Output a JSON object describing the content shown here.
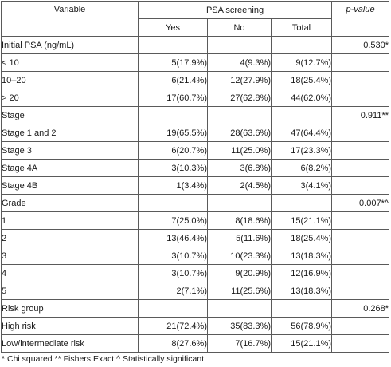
{
  "header": {
    "variable": "Variable",
    "psa_screening": "PSA screening",
    "yes": "Yes",
    "no": "No",
    "total": "Total",
    "p_value": "p-value"
  },
  "rows": [
    {
      "label": "Initial PSA (ng/mL)",
      "kind": "group",
      "yes": "",
      "no": "",
      "total": "",
      "p": "0.530*"
    },
    {
      "label": "< 10",
      "kind": "sub",
      "yes": "5(17.9%)",
      "no": "4(9.3%)",
      "total": "9(12.7%)",
      "p": ""
    },
    {
      "label": "10–20",
      "kind": "sub",
      "yes": "6(21.4%)",
      "no": "12(27.9%)",
      "total": "18(25.4%)",
      "p": ""
    },
    {
      "label": "> 20",
      "kind": "sub",
      "yes": "17(60.7%)",
      "no": "27(62.8%)",
      "total": "44(62.0%)",
      "p": ""
    },
    {
      "label": "Stage",
      "kind": "group",
      "yes": "",
      "no": "",
      "total": "",
      "p": "0.911**"
    },
    {
      "label": "Stage 1 and 2",
      "kind": "sub",
      "yes": "19(65.5%)",
      "no": "28(63.6%)",
      "total": "47(64.4%)",
      "p": ""
    },
    {
      "label": "Stage 3",
      "kind": "sub",
      "yes": "6(20.7%)",
      "no": "11(25.0%)",
      "total": "17(23.3%)",
      "p": ""
    },
    {
      "label": "Stage 4A",
      "kind": "sub",
      "yes": "3(10.3%)",
      "no": "3(6.8%)",
      "total": "6(8.2%)",
      "p": ""
    },
    {
      "label": "Stage 4B",
      "kind": "sub",
      "yes": "1(3.4%)",
      "no": "2(4.5%)",
      "total": "3(4.1%)",
      "p": ""
    },
    {
      "label": "Grade",
      "kind": "group",
      "yes": "",
      "no": "",
      "total": "",
      "p": "0.007*^"
    },
    {
      "label": "1",
      "kind": "sub",
      "yes": "7(25.0%)",
      "no": "8(18.6%)",
      "total": "15(21.1%)",
      "p": ""
    },
    {
      "label": "2",
      "kind": "sub",
      "yes": "13(46.4%)",
      "no": "5(11.6%)",
      "total": "18(25.4%)",
      "p": ""
    },
    {
      "label": "3",
      "kind": "sub",
      "yes": "3(10.7%)",
      "no": "10(23.3%)",
      "total": "13(18.3%)",
      "p": ""
    },
    {
      "label": "4",
      "kind": "sub",
      "yes": "3(10.7%)",
      "no": "9(20.9%)",
      "total": "12(16.9%)",
      "p": ""
    },
    {
      "label": "5",
      "kind": "sub",
      "yes": "2(7.1%)",
      "no": "11(25.6%)",
      "total": "13(18.3%)",
      "p": ""
    },
    {
      "label": "Risk group",
      "kind": "group",
      "yes": "",
      "no": "",
      "total": "",
      "p": "0.268*"
    },
    {
      "label": "High risk",
      "kind": "sub",
      "yes": "21(72.4%)",
      "no": "35(83.3%)",
      "total": "56(78.9%)",
      "p": ""
    },
    {
      "label": "Low/intermediate risk",
      "kind": "sub",
      "yes": "8(27.6%)",
      "no": "7(16.7%)",
      "total": "15(21.1%)",
      "p": ""
    }
  ],
  "footnote": "* Chi squared ** Fishers Exact ^ Statistically significant"
}
